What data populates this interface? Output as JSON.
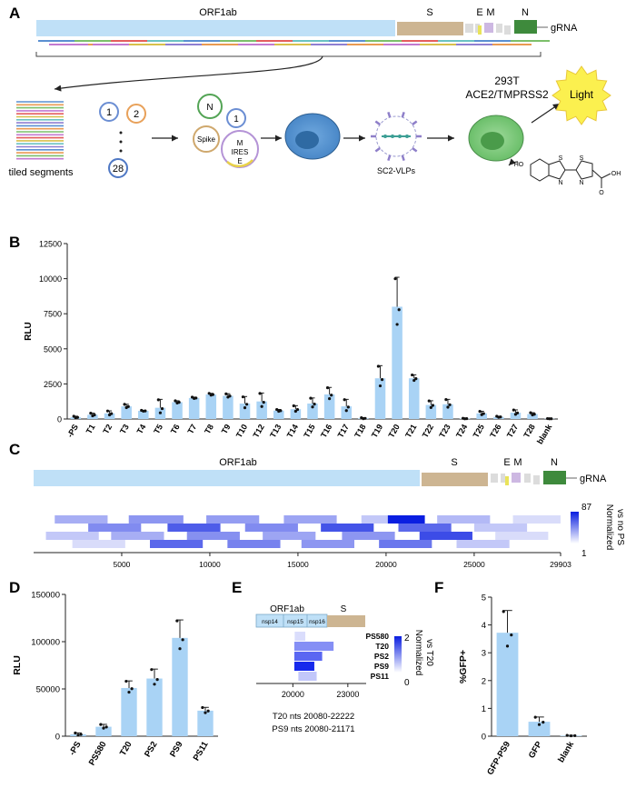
{
  "panels": {
    "a": {
      "letter": "A",
      "genes": {
        "orf1ab": "ORF1ab",
        "s": "S",
        "e": "E",
        "m": "M",
        "n": "N",
        "grna": "gRNA"
      },
      "tiled_segments": "tiled segments",
      "plasmid_1": "1",
      "plasmid_2": "2",
      "plasmid_28": "28",
      "ring_n": "N",
      "ring_1": "1",
      "ring_spike": "Spike",
      "ring_m": "M",
      "ring_ires": "IRES",
      "ring_e": "E",
      "vlp_label": "SC2-VLPs",
      "cell_line_1": "293T",
      "cell_line_2": "ACE2/TMPRSS2",
      "light": "Light",
      "substrate": {
        "ho": "HO",
        "s1": "S",
        "s2": "S",
        "n1": "N",
        "n2": "N",
        "o": "O",
        "oh": "OH"
      }
    },
    "b": {
      "letter": "B"
    },
    "c": {
      "letter": "C",
      "genes": {
        "orf1ab": "ORF1ab",
        "s": "S",
        "e": "E",
        "m": "M",
        "n": "N",
        "grna": "gRNA"
      },
      "scale_max": "87",
      "scale_min": "1",
      "scale_title_1": "Normalized",
      "scale_title_2": "vs no PS"
    },
    "d": {
      "letter": "D"
    },
    "e": {
      "letter": "E",
      "orf1ab": "ORF1ab",
      "s": "S",
      "nsp14": "nsp14",
      "nsp15": "nsp15",
      "nsp16": "nsp16",
      "scale_max": "2",
      "scale_min": "0",
      "scale_title_1": "Normalized",
      "scale_title_2": "vs T20",
      "note_1": "T20 nts 20080-22222",
      "note_2": "PS9 nts 20080-21171"
    },
    "f": {
      "letter": "F"
    }
  },
  "chart_data": [
    {
      "id": "B",
      "type": "bar",
      "ylabel": "RLU",
      "xlabel": "",
      "ylim": [
        0,
        12500
      ],
      "yticks": [
        0,
        2500,
        5000,
        7500,
        10000,
        12500
      ],
      "color": "#a9d3f5",
      "categories": [
        "-PS",
        "T1",
        "T2",
        "T3",
        "T4",
        "T5",
        "T6",
        "T7",
        "T8",
        "T9",
        "T10",
        "T12",
        "T13",
        "T14",
        "T15",
        "T16",
        "T17",
        "T18",
        "T19",
        "T20",
        "T21",
        "T22",
        "T23",
        "T24",
        "T25",
        "T26",
        "T27",
        "T28",
        "blank"
      ],
      "values": [
        120,
        300,
        400,
        900,
        580,
        800,
        1200,
        1500,
        1750,
        1650,
        1100,
        1250,
        600,
        700,
        1100,
        1750,
        900,
        50,
        2900,
        8000,
        2900,
        1000,
        1050,
        30,
        400,
        150,
        450,
        350,
        20
      ],
      "errors": [
        80,
        120,
        180,
        150,
        40,
        600,
        100,
        60,
        80,
        150,
        500,
        600,
        80,
        250,
        400,
        500,
        500,
        40,
        900,
        2100,
        250,
        300,
        350,
        20,
        150,
        50,
        200,
        100,
        10
      ]
    },
    {
      "id": "C",
      "type": "heatmap",
      "xlabel": "",
      "xlim": [
        1,
        29903
      ],
      "xticks": [
        5000,
        10000,
        15000,
        20000,
        25000,
        29903
      ],
      "value_range": [
        1,
        87
      ],
      "tracks": [
        [
          {
            "start": 1200,
            "end": 4200,
            "value": 5
          },
          {
            "start": 5400,
            "end": 8500,
            "value": 8
          },
          {
            "start": 9800,
            "end": 12800,
            "value": 7
          },
          {
            "start": 14200,
            "end": 17200,
            "value": 6
          },
          {
            "start": 18600,
            "end": 20100,
            "value": 3
          },
          {
            "start": 20100,
            "end": 22200,
            "value": 87
          },
          {
            "start": 22900,
            "end": 25900,
            "value": 4
          },
          {
            "start": 27200,
            "end": 29900,
            "value": 2
          }
        ],
        [
          {
            "start": 3100,
            "end": 6100,
            "value": 10
          },
          {
            "start": 7600,
            "end": 10600,
            "value": 25
          },
          {
            "start": 12000,
            "end": 15000,
            "value": 10
          },
          {
            "start": 16300,
            "end": 19300,
            "value": 30
          },
          {
            "start": 20700,
            "end": 23700,
            "value": 20
          },
          {
            "start": 25000,
            "end": 28000,
            "value": 3
          }
        ],
        [
          {
            "start": 700,
            "end": 3700,
            "value": 3
          },
          {
            "start": 4400,
            "end": 7400,
            "value": 5
          },
          {
            "start": 8700,
            "end": 11700,
            "value": 9
          },
          {
            "start": 13000,
            "end": 16000,
            "value": 6
          },
          {
            "start": 17500,
            "end": 20500,
            "value": 8
          },
          {
            "start": 21900,
            "end": 24900,
            "value": 35
          },
          {
            "start": 26200,
            "end": 29200,
            "value": 2
          }
        ],
        [
          {
            "start": 2200,
            "end": 5200,
            "value": 2
          },
          {
            "start": 6600,
            "end": 9600,
            "value": 20
          },
          {
            "start": 11000,
            "end": 14000,
            "value": 12
          },
          {
            "start": 15200,
            "end": 18200,
            "value": 8
          },
          {
            "start": 19600,
            "end": 22600,
            "value": 15
          },
          {
            "start": 24000,
            "end": 27000,
            "value": 3
          }
        ]
      ]
    },
    {
      "id": "D",
      "type": "bar",
      "ylabel": "RLU",
      "xlabel": "",
      "ylim": [
        0,
        150000
      ],
      "yticks": [
        0,
        50000,
        100000,
        150000
      ],
      "color": "#a9d3f5",
      "categories": [
        "-PS",
        "PS580",
        "T20",
        "PS2",
        "PS9",
        "PS11"
      ],
      "values": [
        2000,
        10000,
        51000,
        61000,
        104000,
        27000
      ],
      "errors": [
        1500,
        2500,
        7500,
        10000,
        19000,
        3500
      ]
    },
    {
      "id": "E",
      "type": "heatmap",
      "xticks": [
        20000,
        23000
      ],
      "xlim": [
        18000,
        24000
      ],
      "value_range": [
        0,
        2
      ],
      "rows": [
        {
          "label": "PS580",
          "start": 20100,
          "end": 20680,
          "value": 0.3
        },
        {
          "label": "T20",
          "start": 20080,
          "end": 22222,
          "value": 1.0
        },
        {
          "label": "PS2",
          "start": 20080,
          "end": 21600,
          "value": 1.35
        },
        {
          "label": "PS9",
          "start": 20080,
          "end": 21171,
          "value": 1.9
        },
        {
          "label": "PS11",
          "start": 20300,
          "end": 21300,
          "value": 0.5
        }
      ]
    },
    {
      "id": "F",
      "type": "bar",
      "ylabel": "%GFP+",
      "xlabel": "",
      "ylim": [
        0,
        5
      ],
      "yticks": [
        0,
        1,
        2,
        3,
        4,
        5
      ],
      "color": "#a9d3f5",
      "categories": [
        "GFP-PS9",
        "GFP",
        "blank"
      ],
      "values": [
        3.72,
        0.52,
        0.02
      ],
      "errors": [
        0.8,
        0.17,
        0.01
      ]
    }
  ]
}
